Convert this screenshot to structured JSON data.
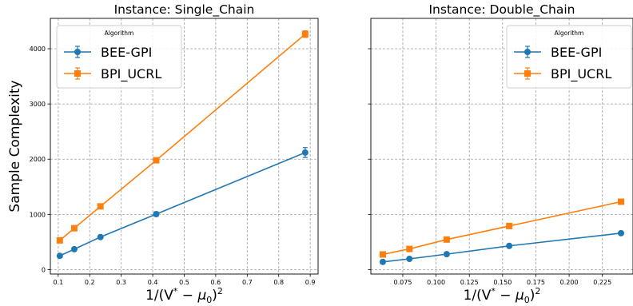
{
  "chart_data": [
    {
      "type": "line",
      "title": "Instance: Single_Chain",
      "xlabel_base": "1/(V",
      "xlabel_sup": "*",
      "xlabel_mid": " − μ",
      "xlabel_sub": "0",
      "xlabel_end": ")",
      "xlabel_sq": "2",
      "ylabel": "Sample Complexity",
      "xlim": [
        0.075,
        0.925
      ],
      "ylim": [
        -80,
        4550
      ],
      "xticks": [
        0.1,
        0.2,
        0.3,
        0.4,
        0.5,
        0.6,
        0.7,
        0.8,
        0.9
      ],
      "xtick_labels": [
        "0.1",
        "0.2",
        "0.3",
        "0.4",
        "0.5",
        "0.6",
        "0.7",
        "0.8",
        "0.9"
      ],
      "yticks": [
        0,
        1000,
        2000,
        3000,
        4000
      ],
      "ytick_labels": [
        "0",
        "1000",
        "2000",
        "3000",
        "4000"
      ],
      "grid": true,
      "legend": {
        "title": "Algorithm",
        "placement": "top-left"
      },
      "series": [
        {
          "name": "BEE-GPI",
          "color": "#1f77b4",
          "marker": "circle",
          "x": [
            0.105,
            0.151,
            0.234,
            0.411,
            0.884
          ],
          "y": [
            250,
            370,
            590,
            1005,
            2120
          ],
          "err": [
            15,
            20,
            25,
            40,
            90
          ]
        },
        {
          "name": "BPI_UCRL",
          "color": "#ff7f0e",
          "marker": "square",
          "x": [
            0.105,
            0.151,
            0.234,
            0.411,
            0.884
          ],
          "y": [
            530,
            750,
            1145,
            1980,
            4265
          ],
          "err": [
            15,
            20,
            25,
            30,
            60
          ]
        }
      ]
    },
    {
      "type": "line",
      "title": "Instance: Double_Chain",
      "xlabel_base": "1/(V",
      "xlabel_sup": "*",
      "xlabel_mid": " − μ",
      "xlabel_sub": "0",
      "xlabel_end": ")",
      "xlabel_sq": "2",
      "ylabel": "",
      "xlim": [
        0.051,
        0.248
      ],
      "ylim": [
        -80,
        4550
      ],
      "xticks": [
        0.075,
        0.1,
        0.125,
        0.15,
        0.175,
        0.2,
        0.225
      ],
      "xtick_labels": [
        "0.075",
        "0.100",
        "0.125",
        "0.150",
        "0.175",
        "0.200",
        "0.225"
      ],
      "yticks": [
        0,
        1000,
        2000,
        3000,
        4000
      ],
      "ytick_labels": [],
      "grid": true,
      "legend": {
        "title": "Algorithm",
        "placement": "top-right"
      },
      "series": [
        {
          "name": "BEE-GPI",
          "color": "#1f77b4",
          "marker": "circle",
          "x": [
            0.06,
            0.08,
            0.108,
            0.155,
            0.239
          ],
          "y": [
            140,
            195,
            280,
            430,
            660
          ],
          "err": [
            10,
            10,
            12,
            15,
            15
          ]
        },
        {
          "name": "BPI_UCRL",
          "color": "#ff7f0e",
          "marker": "square",
          "x": [
            0.06,
            0.08,
            0.108,
            0.155,
            0.239
          ],
          "y": [
            275,
            375,
            545,
            790,
            1230
          ],
          "err": [
            10,
            10,
            12,
            15,
            20
          ]
        }
      ]
    }
  ]
}
